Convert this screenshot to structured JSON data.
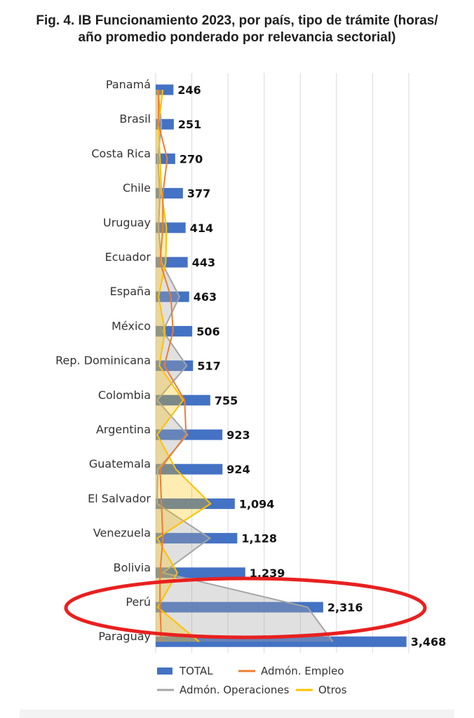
{
  "title_line1": "Fig. 4. IB Funcionamiento 2023, por país, tipo de trámite (horas/",
  "title_line2": "año promedio ponderado por relevancia sectorial)",
  "colors": {
    "total": "#4472C4",
    "empleo": "#ED7D31",
    "operaciones": "#A5A5A5",
    "otros": "#FFC000",
    "highlight": "#E8201F"
  },
  "chart_data": {
    "type": "bar",
    "orientation": "horizontal",
    "categories": [
      "Panamá",
      "Brasil",
      "Costa Rica",
      "Chile",
      "Uruguay",
      "Ecuador",
      "España",
      "México",
      "Rep. Dominicana",
      "Colombia",
      "Argentina",
      "Guatemala",
      "El Salvador",
      "Venezuela",
      "Bolivia",
      "Perú",
      "Paraguay"
    ],
    "value_labels": [
      "246",
      "251",
      "270",
      "377",
      "414",
      "443",
      "463",
      "506",
      "517",
      "755",
      "923",
      "924",
      "1,094",
      "1,128",
      "1,239",
      "2,316",
      "3,468"
    ],
    "series": [
      {
        "name": "TOTAL",
        "type": "bar",
        "values": [
          246,
          251,
          270,
          377,
          414,
          443,
          463,
          506,
          517,
          755,
          923,
          924,
          1094,
          1128,
          1239,
          2316,
          3468
        ]
      },
      {
        "name": "Admón. Empleo",
        "type": "line",
        "values": [
          40,
          40,
          160,
          100,
          100,
          60,
          210,
          240,
          120,
          400,
          420,
          60,
          80,
          100,
          60,
          60,
          80
        ]
      },
      {
        "name": "Admón. Operaciones",
        "type": "area",
        "values": [
          30,
          80,
          30,
          60,
          40,
          80,
          330,
          100,
          430,
          20,
          440,
          30,
          20,
          750,
          100,
          2100,
          2450
        ]
      },
      {
        "name": "Otros",
        "type": "area",
        "values": [
          100,
          40,
          60,
          80,
          150,
          140,
          40,
          130,
          50,
          380,
          20,
          280,
          760,
          20,
          300,
          30,
          600
        ]
      }
    ],
    "xlim": [
      0,
      3500
    ],
    "grid": true,
    "legend_position": "bottom",
    "annotation": "red ellipse highlighting Perú"
  },
  "legend": {
    "total": "TOTAL",
    "empleo": "Admón. Empleo",
    "operaciones": "Admón. Operaciones",
    "otros": "Otros"
  }
}
